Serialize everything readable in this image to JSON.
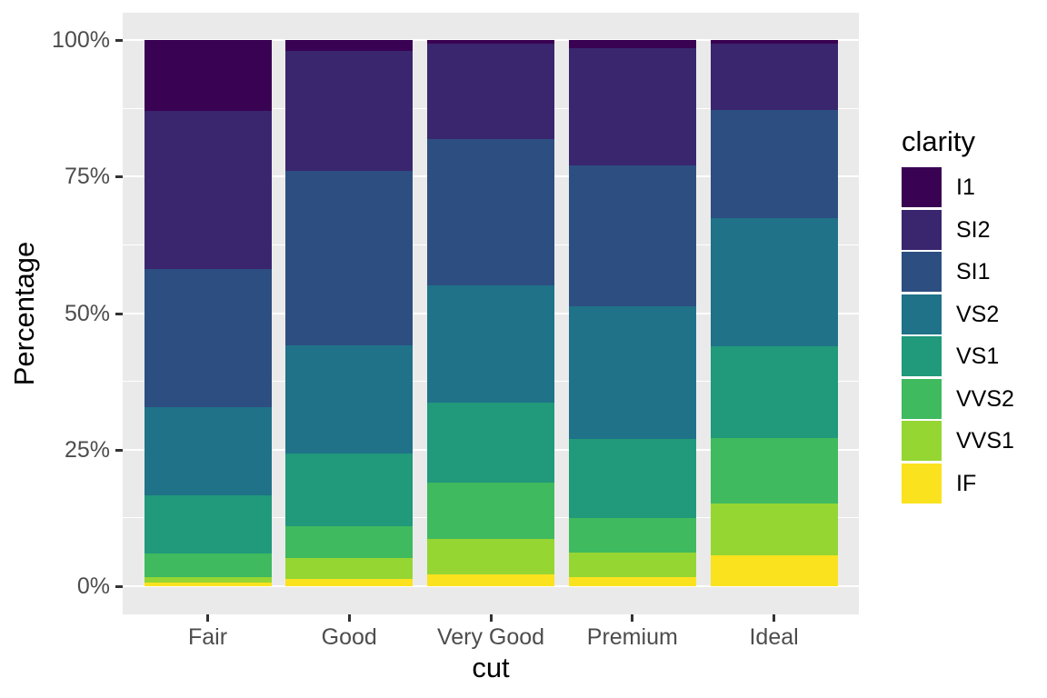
{
  "figure": {
    "background": "#FFFFFF",
    "panel_background": "#EAEAEA",
    "grid_color": "#FFFFFF",
    "tick_mark_color": "#333333",
    "tick_label_color": "#4D4D4D",
    "title_color": "#000000"
  },
  "chart_data": {
    "type": "bar",
    "variant": "stacked-100-percent",
    "orientation": "vertical",
    "title": "",
    "xlabel": "cut",
    "ylabel": "Percentage",
    "legend_title": "clarity",
    "legend_position": "right",
    "grid": true,
    "ylim": [
      0,
      100
    ],
    "categories": [
      "Fair",
      "Good",
      "Very Good",
      "Premium",
      "Ideal"
    ],
    "y_ticks": [
      {
        "label": "0%",
        "value": 0
      },
      {
        "label": "25%",
        "value": 25
      },
      {
        "label": "50%",
        "value": 50
      },
      {
        "label": "75%",
        "value": 75
      },
      {
        "label": "100%",
        "value": 100
      }
    ],
    "minor_gridlines": [
      12.5,
      37.5,
      62.5,
      87.5
    ],
    "stack_order": "top-to-bottom as listed; values are percentage of each cut",
    "series": [
      {
        "name": "I1",
        "color": "#3A0252",
        "values": [
          13.0,
          2.0,
          0.7,
          1.5,
          0.7
        ]
      },
      {
        "name": "SI2",
        "color": "#39266F",
        "values": [
          28.9,
          22.0,
          17.4,
          21.4,
          12.1
        ]
      },
      {
        "name": "SI1",
        "color": "#2D4E81",
        "values": [
          25.3,
          31.8,
          26.8,
          25.9,
          19.9
        ]
      },
      {
        "name": "VS2",
        "color": "#1F7288",
        "values": [
          16.2,
          19.9,
          21.4,
          24.3,
          23.5
        ]
      },
      {
        "name": "VS1",
        "color": "#21997B",
        "values": [
          10.6,
          13.2,
          14.7,
          14.4,
          16.7
        ]
      },
      {
        "name": "VVS2",
        "color": "#3FBA5F",
        "values": [
          4.3,
          5.8,
          10.2,
          6.3,
          12.1
        ]
      },
      {
        "name": "VVS1",
        "color": "#95D633",
        "values": [
          1.1,
          3.8,
          6.5,
          4.5,
          9.5
        ]
      },
      {
        "name": "IF",
        "color": "#FBE21F",
        "values": [
          0.6,
          1.4,
          2.2,
          1.7,
          5.6
        ]
      }
    ]
  }
}
